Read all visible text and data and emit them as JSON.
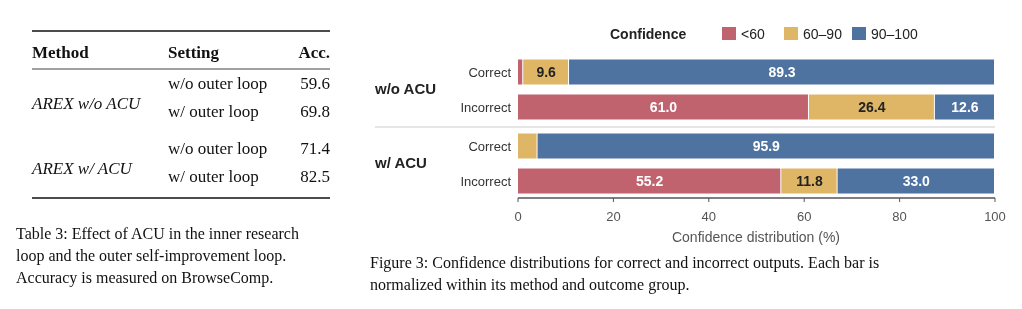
{
  "chart_data": [
    {
      "type": "other",
      "categories": [
        "w/o outer loop",
        "w/ outer loop",
        "w/o outer loop",
        "w/ outer loop"
      ],
      "values": [
        59.6,
        69.8,
        71.4,
        82.5
      ],
      "data_labels": true,
      "annotations": [
        "Method",
        "Setting",
        "Acc.",
        "AREX w/o ACU",
        "AREX w/ ACU",
        "Table 3: Effect of ACU in the inner research loop and the outer self-improvement loop. Accuracy is measured on BrowseComp."
      ]
    },
    {
      "type": "bar",
      "orientation": "horizontal",
      "stacked": true,
      "categories": [
        "Correct",
        "Incorrect",
        "Correct",
        "Incorrect"
      ],
      "series": [
        {
          "name": "<60",
          "color": "#c0636e",
          "values": [
            1.1,
            61.0,
            0,
            55.2
          ],
          "value_labels": [
            null,
            "61.0",
            null,
            "55.2"
          ]
        },
        {
          "name": "60–90",
          "color": "#dfb566",
          "values": [
            9.6,
            26.4,
            4.1,
            11.8
          ],
          "value_labels": [
            "9.6",
            "26.4",
            null,
            "11.8"
          ]
        },
        {
          "name": "90–100",
          "color": "#4e73a0",
          "values": [
            89.3,
            12.6,
            95.9,
            33.0
          ],
          "value_labels": [
            "89.3",
            "12.6",
            "95.9",
            "33.0"
          ]
        }
      ],
      "xlim": [
        0,
        100
      ],
      "xticks": [
        0,
        20,
        40,
        60,
        80,
        100
      ],
      "xlabel": "Confidence distribution (%)",
      "legend": "top",
      "legend_title": "Confidence",
      "annotations": [
        "w/o ACU",
        "w/ ACU",
        "Figure 3: Confidence distributions for correct and incorrect outputs. Each bar is normalized within its method and outcome group."
      ]
    }
  ]
}
